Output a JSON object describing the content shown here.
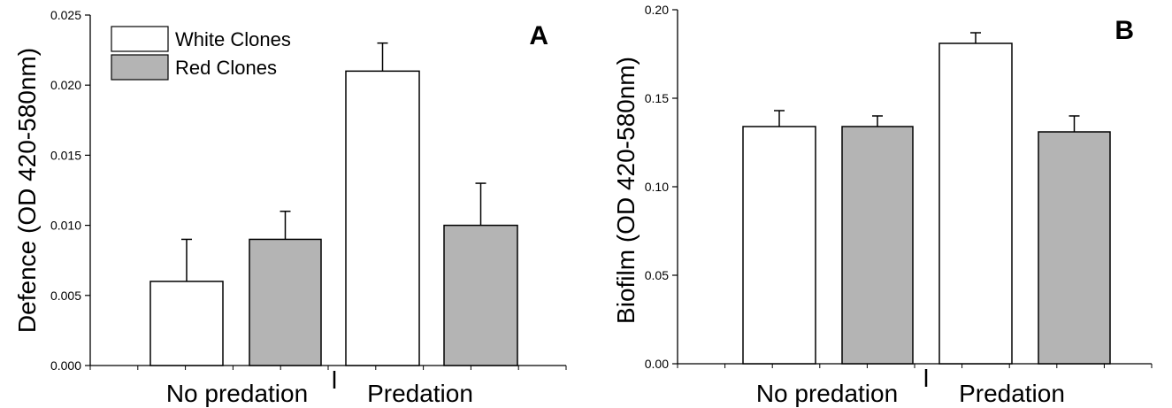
{
  "colors": {
    "white_clones": "#ffffff",
    "red_clones": "#b4b4b4",
    "axis": "#000000"
  },
  "chart_data": [
    {
      "type": "bar",
      "panel_label": "A",
      "ylabel": "Defence (OD 420-580nm)",
      "ylim": [
        0,
        0.025
      ],
      "yticks": [
        "0.000",
        "0.005",
        "0.010",
        "0.015",
        "0.020",
        "0.025"
      ],
      "categories": [
        "No predation",
        "Predation"
      ],
      "legend": {
        "placement": "top-left",
        "entries": [
          "White Clones",
          "Red Clones"
        ]
      },
      "series": [
        {
          "name": "White Clones",
          "values": [
            0.006,
            0.021
          ],
          "errors": [
            0.003,
            0.002
          ]
        },
        {
          "name": "Red Clones",
          "values": [
            0.009,
            0.01
          ],
          "errors": [
            0.002,
            0.003
          ]
        }
      ]
    },
    {
      "type": "bar",
      "panel_label": "B",
      "ylabel": "Biofilm (OD 420-580nm)",
      "ylim": [
        0,
        0.2
      ],
      "yticks": [
        "0.00",
        "0.05",
        "0.10",
        "0.15",
        "0.20"
      ],
      "categories": [
        "No predation",
        "Predation"
      ],
      "series": [
        {
          "name": "White Clones",
          "values": [
            0.134,
            0.181
          ],
          "errors": [
            0.009,
            0.006
          ]
        },
        {
          "name": "Red Clones",
          "values": [
            0.134,
            0.131
          ],
          "errors": [
            0.006,
            0.009
          ]
        }
      ]
    }
  ]
}
